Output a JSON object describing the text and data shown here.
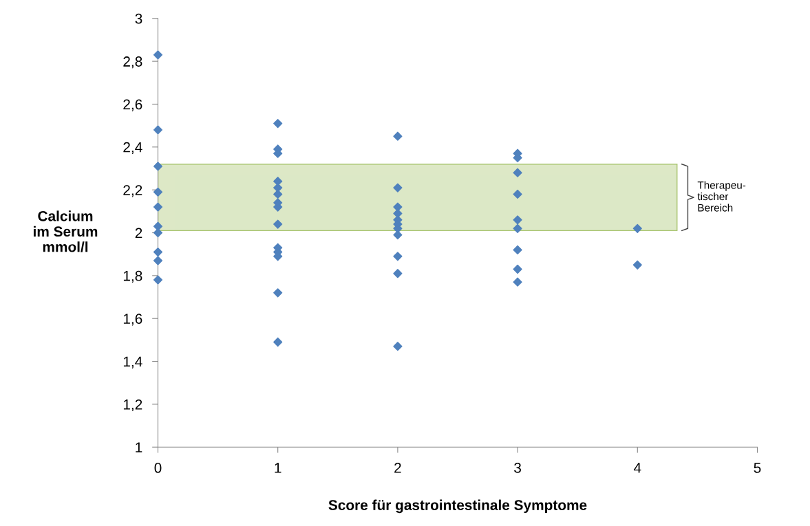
{
  "chart_data": {
    "type": "scatter",
    "xlabel": "Score für gastrointestinale Symptome",
    "ylabel": "Calcium\nim Serum\nmmol/l",
    "x": [
      0,
      0,
      0,
      0,
      0,
      0,
      0,
      0,
      0,
      0,
      1,
      1,
      1,
      1,
      1,
      1,
      1,
      1,
      1,
      1,
      1,
      1,
      1,
      1,
      2,
      2,
      2,
      2,
      2,
      2,
      2,
      2,
      2,
      2,
      2,
      3,
      3,
      3,
      3,
      3,
      3,
      3,
      3,
      3,
      4,
      4
    ],
    "series": [
      {
        "color": "#4f81bd",
        "values": [
          2.83,
          2.48,
          2.31,
          2.19,
          2.12,
          2.03,
          2.0,
          1.91,
          1.87,
          1.78,
          2.51,
          2.39,
          2.37,
          2.24,
          2.21,
          2.18,
          2.14,
          2.12,
          2.04,
          1.93,
          1.91,
          1.89,
          1.72,
          1.49,
          2.45,
          2.21,
          2.12,
          2.09,
          2.06,
          2.04,
          2.02,
          1.99,
          1.89,
          1.81,
          1.47,
          2.37,
          2.35,
          2.28,
          2.18,
          2.06,
          2.02,
          1.92,
          1.83,
          1.77,
          2.02,
          1.85
        ]
      }
    ],
    "xlim": [
      0,
      5
    ],
    "xticks": [
      0,
      1,
      2,
      3,
      4,
      5
    ],
    "ylim": [
      1,
      3
    ],
    "yticks": [
      {
        "value": 1,
        "label": "1"
      },
      {
        "value": 1.2,
        "label": "1,2"
      },
      {
        "value": 1.4,
        "label": "1,4"
      },
      {
        "value": 1.6,
        "label": "1,6"
      },
      {
        "value": 1.8,
        "label": "1,8"
      },
      {
        "value": 2,
        "label": "2"
      },
      {
        "value": 2.2,
        "label": "2,2"
      },
      {
        "value": 2.4,
        "label": "2,4"
      },
      {
        "value": 2.6,
        "label": "2,6"
      },
      {
        "value": 2.8,
        "label": "2,8"
      },
      {
        "value": 3,
        "label": "3"
      }
    ],
    "bands": [
      {
        "axis": "y",
        "from": 2.01,
        "to": 2.32,
        "label": "Therapeu-\ntischer\nBereich",
        "color": "#d7e4bd"
      }
    ],
    "marker": "diamond",
    "grid": false,
    "legend": false
  }
}
